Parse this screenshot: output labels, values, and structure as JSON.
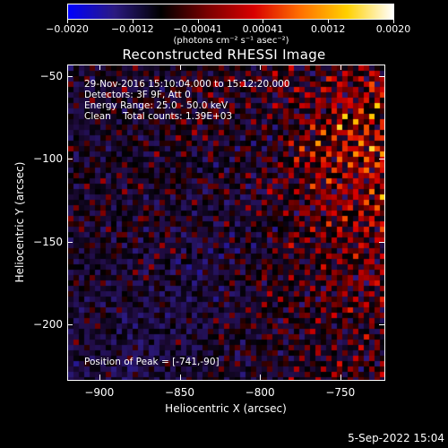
{
  "colorbar": {
    "tick_labels": [
      "−0.0020",
      "−0.0012",
      "−0.00041",
      "0.00041",
      "0.0012",
      "0.0020"
    ],
    "unit_label": "(photons cm⁻² s⁻¹ asec⁻²)",
    "gradient_colors": [
      "#0000ff",
      "#2b1a80",
      "#000000",
      "#7a0000",
      "#d80000",
      "#ff7000",
      "#ffd000",
      "#ffffff"
    ]
  },
  "chart_data": {
    "type": "heatmap",
    "title": "Reconstructed RHESSI Image",
    "xlabel": "Heliocentric X (arcsec)",
    "ylabel": "Heliocentric Y (arcsec)",
    "x_ticks": [
      -900,
      -850,
      -800,
      -750
    ],
    "y_ticks": [
      -50,
      -100,
      -150,
      -200
    ],
    "xlim": [
      -920,
      -722
    ],
    "ylim": [
      -234,
      -43
    ],
    "color_range": [
      -0.002,
      0.002
    ],
    "peak_position": [
      -741,
      -90
    ],
    "x_tick_labels": [
      "−900",
      "−850",
      "−800",
      "−750"
    ],
    "y_tick_labels": [
      "−50",
      "−100",
      "−150",
      "−200"
    ]
  },
  "annotations": {
    "time_range": "29-Nov-2016 15:10:04.000 to 15:12:20.000",
    "detectors": "Detectors: 3F 9F, Att 0",
    "energy": "Energy Range: 25.0 - 50.0 keV",
    "clean": "Clean    Total counts: 1.39E+03",
    "peak": "Position of Peak = [-741,-90]"
  },
  "footer": {
    "timestamp": "5-Sep-2022 15:04"
  }
}
